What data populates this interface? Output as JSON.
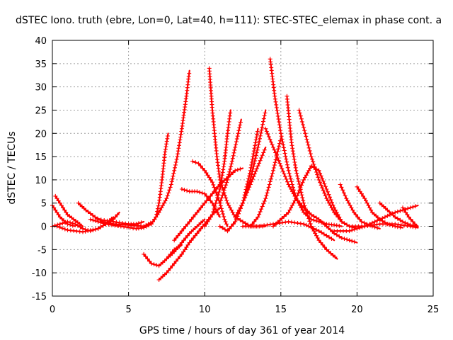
{
  "chart_data": {
    "type": "scatter",
    "title": "dSTEC Iono. truth (ebre, Lon=0, Lat=40, h=111): STEC-STEC_elemax in phase cont. a",
    "xlabel": "GPS time / hours of day 361 of year 2014",
    "ylabel": "dSTEC  / TECUs",
    "xlim": [
      0,
      25
    ],
    "ylim": [
      -15,
      40
    ],
    "xticks": [
      0,
      5,
      10,
      15,
      20,
      25
    ],
    "yticks": [
      -15,
      -10,
      -5,
      0,
      5,
      10,
      15,
      20,
      25,
      30,
      35,
      40
    ],
    "grid": true,
    "marker": "+",
    "color": "#ff0000",
    "series": [
      {
        "x": [
          0.0,
          0.5,
          1.0,
          1.5
        ],
        "y": [
          4.5,
          2.0,
          0.5,
          0.0
        ]
      },
      {
        "x": [
          0.2,
          0.6,
          1.0,
          1.4,
          1.8,
          2.0
        ],
        "y": [
          6.5,
          4.5,
          2.5,
          1.5,
          0.5,
          0.0
        ]
      },
      {
        "x": [
          0.0,
          0.5,
          1.0,
          1.5,
          2.0,
          2.5,
          3.0,
          3.5,
          4.0
        ],
        "y": [
          0.0,
          0.5,
          1.0,
          0.5,
          -0.5,
          -1.0,
          -0.5,
          0.5,
          2.0
        ]
      },
      {
        "x": [
          0.3,
          1.0,
          2.0,
          3.0,
          3.5,
          4.0,
          4.4
        ],
        "y": [
          0.0,
          -0.8,
          -1.2,
          -0.5,
          0.5,
          1.5,
          3.0
        ]
      },
      {
        "x": [
          1.7,
          2.2,
          2.8,
          3.3,
          4.0,
          4.5
        ],
        "y": [
          5.0,
          3.5,
          2.0,
          1.0,
          0.5,
          0.0
        ]
      },
      {
        "x": [
          3.0,
          4.0,
          5.0,
          5.5,
          6.0
        ],
        "y": [
          1.5,
          1.0,
          0.5,
          0.5,
          1.0
        ]
      },
      {
        "x": [
          2.5,
          3.5,
          4.5,
          5.5,
          6.0,
          6.5,
          6.8,
          7.0,
          7.2,
          7.4,
          7.6
        ],
        "y": [
          1.5,
          0.5,
          0.0,
          -0.5,
          -0.3,
          0.5,
          2.0,
          5.0,
          10.0,
          16.0,
          20.0
        ]
      },
      {
        "x": [
          4.0,
          5.0,
          6.0,
          6.6,
          7.0,
          7.5,
          7.8,
          8.2,
          8.5,
          8.8,
          9.0
        ],
        "y": [
          0.5,
          0.3,
          0.0,
          1.0,
          3.0,
          6.0,
          9.0,
          15.0,
          21.0,
          28.0,
          33.5
        ]
      },
      {
        "x": [
          6.0,
          6.5,
          7.0,
          7.5,
          8.0,
          8.5
        ],
        "y": [
          -6.0,
          -8.0,
          -8.5,
          -7.0,
          -5.0,
          -4.0
        ]
      },
      {
        "x": [
          7.0,
          7.5,
          8.0,
          8.5,
          9.0,
          9.5,
          10.0,
          10.5,
          11.0
        ],
        "y": [
          -11.5,
          -10.0,
          -8.0,
          -6.0,
          -3.5,
          -1.5,
          0.5,
          2.5,
          4.0
        ]
      },
      {
        "x": [
          7.5,
          8.0,
          8.5,
          9.0,
          9.5,
          10.0
        ],
        "y": [
          -7.0,
          -5.5,
          -3.5,
          -1.5,
          0.0,
          1.5
        ]
      },
      {
        "x": [
          8.5,
          9.0,
          9.5,
          10.0,
          10.5,
          11.0
        ],
        "y": [
          8.0,
          7.5,
          7.5,
          7.0,
          5.0,
          2.0
        ]
      },
      {
        "x": [
          8.0,
          9.0,
          10.0,
          11.0,
          12.0,
          12.5
        ],
        "y": [
          -3.0,
          1.0,
          5.0,
          9.0,
          12.0,
          12.5
        ]
      },
      {
        "x": [
          9.2,
          9.6,
          10.0,
          10.5,
          11.0,
          11.3,
          11.5
        ],
        "y": [
          14.0,
          13.5,
          12.0,
          9.5,
          5.0,
          1.5,
          0.0
        ]
      },
      {
        "x": [
          10.3,
          10.5,
          10.8,
          11.0,
          11.5,
          12.0,
          13.0,
          14.0
        ],
        "y": [
          34.0,
          25.0,
          15.0,
          10.0,
          5.0,
          2.0,
          0.0,
          0.0
        ]
      },
      {
        "x": [
          10.0,
          10.5,
          11.0,
          11.3,
          11.5,
          11.7
        ],
        "y": [
          0.0,
          2.5,
          8.0,
          14.0,
          20.0,
          25.0
        ]
      },
      {
        "x": [
          11.0,
          11.5,
          11.8,
          12.0,
          12.2,
          12.4
        ],
        "y": [
          5.0,
          10.0,
          14.0,
          17.0,
          20.0,
          23.0
        ]
      },
      {
        "x": [
          11.0,
          11.5,
          12.0,
          12.5,
          13.0,
          13.5
        ],
        "y": [
          0.0,
          -1.0,
          1.0,
          5.0,
          12.0,
          21.0
        ]
      },
      {
        "x": [
          11.5,
          12.0,
          12.5,
          13.0,
          13.5,
          14.0
        ],
        "y": [
          -1.0,
          1.0,
          5.0,
          10.0,
          17.0,
          25.0
        ]
      },
      {
        "x": [
          12.0,
          12.5,
          13.0,
          13.5,
          14.0
        ],
        "y": [
          2.0,
          5.0,
          9.0,
          13.0,
          17.0
        ]
      },
      {
        "x": [
          13.0,
          13.5,
          14.0,
          14.5,
          15.0
        ],
        "y": [
          0.0,
          2.0,
          6.0,
          12.0,
          19.0
        ]
      },
      {
        "x": [
          14.3,
          14.6,
          15.0,
          15.5,
          16.0,
          16.5,
          17.0,
          17.5,
          18.0,
          18.5,
          19.0
        ],
        "y": [
          36.0,
          28.0,
          20.0,
          12.0,
          6.0,
          3.0,
          1.5,
          1.0,
          0.5,
          0.3,
          0.0
        ]
      },
      {
        "x": [
          14.0,
          15.0,
          15.5,
          16.0,
          16.5,
          17.0,
          17.5,
          18.0,
          18.5,
          19.0,
          19.5,
          20.0
        ],
        "y": [
          21.0,
          13.0,
          9.0,
          6.0,
          4.0,
          2.5,
          1.5,
          0.0,
          -1.5,
          -2.5,
          -3.0,
          -3.5
        ]
      },
      {
        "x": [
          15.4,
          15.7,
          16.0,
          16.5,
          17.0,
          17.5,
          18.0,
          18.7
        ],
        "y": [
          28.0,
          18.0,
          12.0,
          5.0,
          0.0,
          -3.0,
          -5.0,
          -7.0
        ]
      },
      {
        "x": [
          16.2,
          16.6,
          17.0,
          17.5,
          18.0,
          18.5,
          19.0,
          19.5,
          20.0
        ],
        "y": [
          25.0,
          20.0,
          15.0,
          10.0,
          6.0,
          3.0,
          1.0,
          0.0,
          -0.5
        ]
      },
      {
        "x": [
          12.5,
          13.5,
          14.5,
          15.5,
          16.5,
          17.5,
          18.5
        ],
        "y": [
          0.0,
          0.0,
          0.5,
          1.0,
          0.5,
          -1.0,
          -3.0
        ]
      },
      {
        "x": [
          14.5,
          15.5,
          16.0,
          16.5,
          17.0,
          17.5,
          18.0,
          18.5,
          19.0
        ],
        "y": [
          0.0,
          3.0,
          6.0,
          10.0,
          13.0,
          12.0,
          8.0,
          4.0,
          1.0
        ]
      },
      {
        "x": [
          18.9,
          19.3,
          19.8,
          20.3,
          21.0,
          21.5
        ],
        "y": [
          9.0,
          6.0,
          3.0,
          1.0,
          0.0,
          -0.5
        ]
      },
      {
        "x": [
          20.0,
          20.5,
          21.0,
          21.5,
          22.0,
          22.5,
          23.0
        ],
        "y": [
          8.5,
          6.0,
          3.0,
          1.5,
          0.5,
          0.0,
          -0.3
        ]
      },
      {
        "x": [
          21.5,
          22.0,
          22.5,
          23.0,
          23.5,
          24.0
        ],
        "y": [
          5.0,
          3.5,
          2.0,
          1.0,
          0.3,
          0.0
        ]
      },
      {
        "x": [
          23.0,
          23.4,
          23.8,
          24.0
        ],
        "y": [
          4.0,
          2.0,
          0.5,
          0.0
        ]
      },
      {
        "x": [
          18.5,
          19.5,
          20.5,
          21.5,
          22.5,
          23.0,
          23.5,
          24.0
        ],
        "y": [
          -1.0,
          -1.0,
          0.0,
          1.5,
          3.0,
          3.5,
          4.0,
          4.5
        ]
      },
      {
        "x": [
          19.5,
          20.5,
          21.5,
          22.5,
          23.5,
          24.0
        ],
        "y": [
          0.0,
          0.0,
          0.5,
          0.5,
          0.0,
          -0.3
        ]
      }
    ]
  }
}
